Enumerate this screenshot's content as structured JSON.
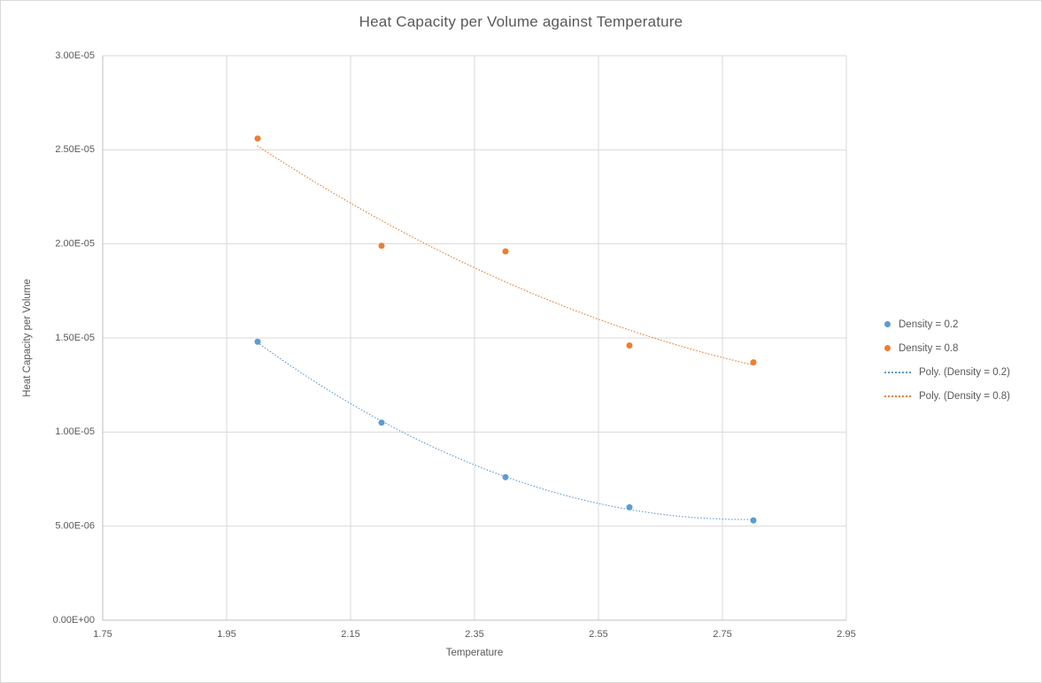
{
  "chart_data": {
    "type": "scatter",
    "title": "Heat Capacity per Volume against Temperature",
    "xlabel": "Temperature",
    "ylabel": "Heat Capacity per Volume",
    "xlim": [
      1.75,
      2.95
    ],
    "ylim": [
      0,
      3e-05
    ],
    "x_ticks": [
      1.75,
      1.95,
      2.15,
      2.35,
      2.55,
      2.75,
      2.95
    ],
    "x_tick_labels": [
      "1.75",
      "1.95",
      "2.15",
      "2.35",
      "2.55",
      "2.75",
      "2.95"
    ],
    "y_ticks": [
      0,
      5e-06,
      1e-05,
      1.5e-05,
      2e-05,
      2.5e-05,
      3e-05
    ],
    "y_tick_labels": [
      "0.00E+00",
      "5.00E-06",
      "1.00E-05",
      "1.50E-05",
      "2.00E-05",
      "2.50E-05",
      "3.00E-05"
    ],
    "grid": true,
    "legend_position": "right",
    "x": [
      2.0,
      2.2,
      2.4,
      2.6,
      2.8
    ],
    "series": [
      {
        "name": "Density = 0.2",
        "color": "#5B9BD5",
        "values": [
          1.48e-05,
          1.05e-05,
          7.6e-06,
          6e-06,
          5.3e-06
        ],
        "trendline": "poly2",
        "trendline_label": "Poly. (Density = 0.2)"
      },
      {
        "name": "Density = 0.8",
        "color": "#ED7D31",
        "values": [
          2.56e-05,
          1.99e-05,
          1.96e-05,
          1.46e-05,
          1.37e-05
        ],
        "trendline": "poly2",
        "trendline_label": "Poly. (Density = 0.8)"
      }
    ],
    "legend": [
      {
        "label": "Density = 0.2",
        "marker": "circle",
        "color": "#5B9BD5"
      },
      {
        "label": "Density = 0.8",
        "marker": "circle",
        "color": "#ED7D31"
      },
      {
        "label": "Poly. (Density = 0.2)",
        "marker": "dotted-line",
        "color": "#5B9BD5"
      },
      {
        "label": "Poly. (Density = 0.8)",
        "marker": "dotted-line",
        "color": "#ED7D31"
      }
    ]
  },
  "colors": {
    "text": "#595959",
    "grid": "#D9D9D9",
    "axis": "#BFBFBF",
    "background": "#FFFFFF",
    "border": "#D9D9D9"
  }
}
